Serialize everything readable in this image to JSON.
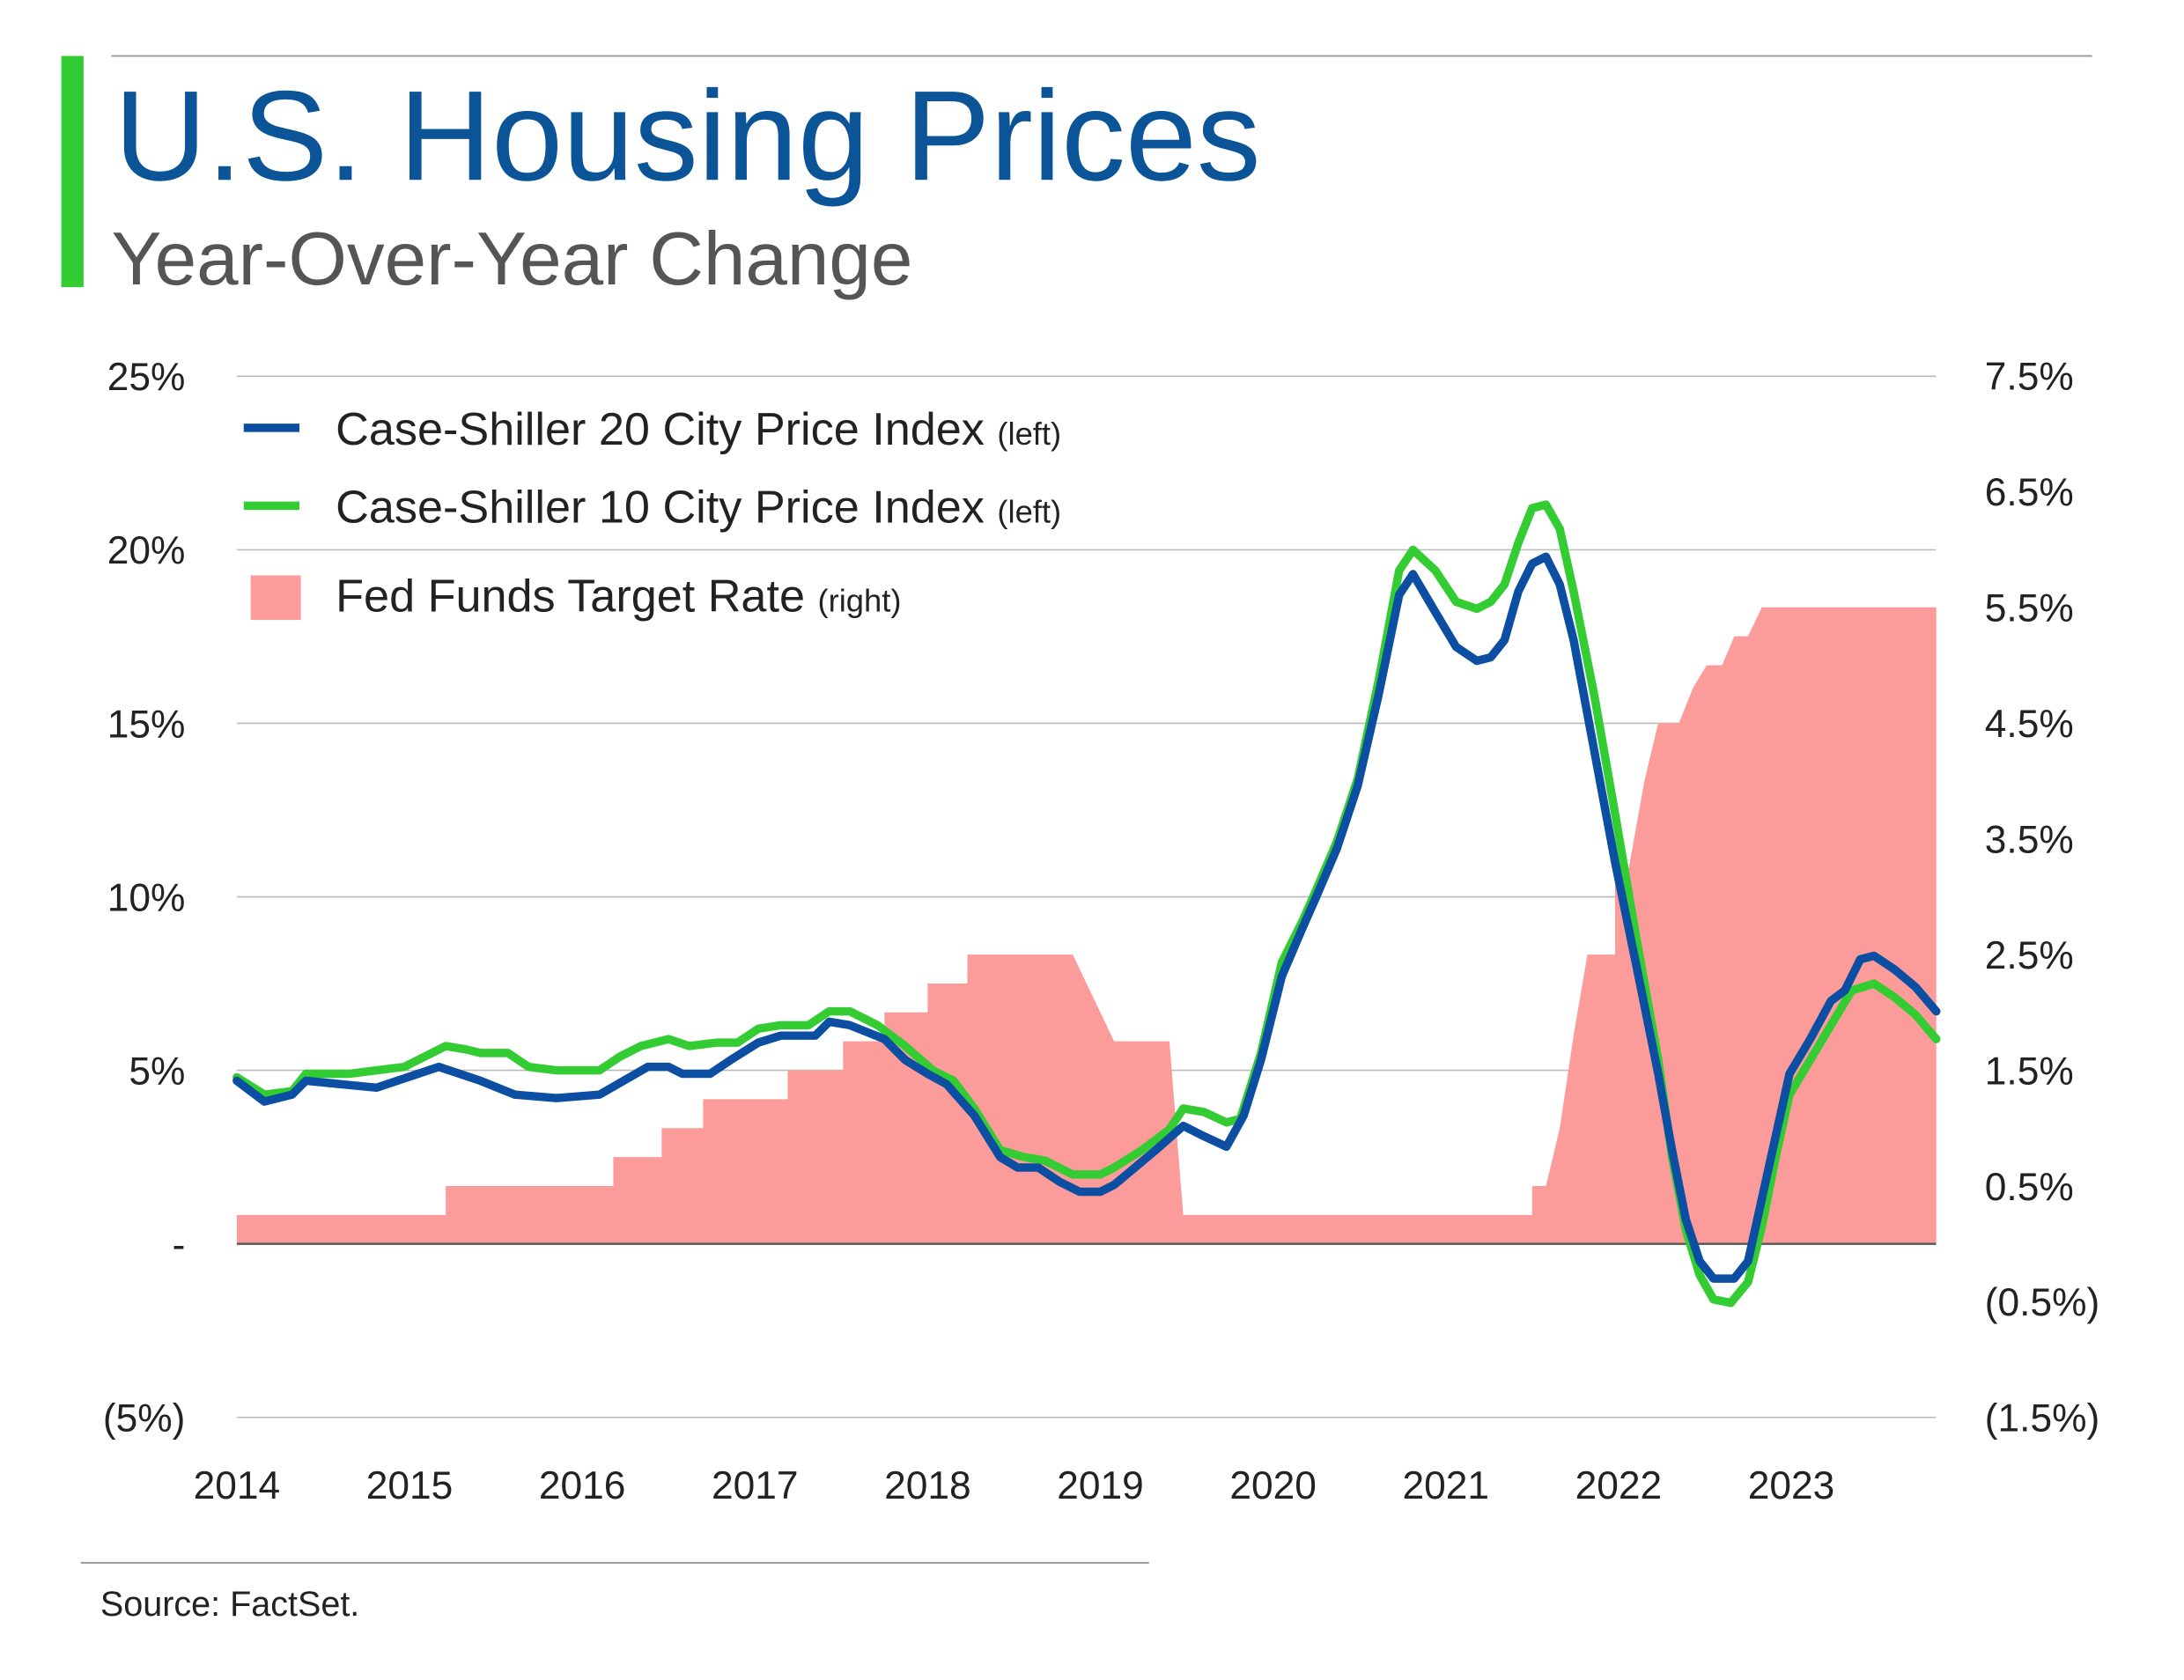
{
  "header": {
    "title": "U.S. Housing Prices",
    "subtitle": "Year-Over-Year Change"
  },
  "footer": {
    "source": "Source: FactSet."
  },
  "colors": {
    "cs20": "#0b4ea2",
    "cs10": "#33cc33",
    "fed": "#fc9c9a",
    "title": "#0a5497",
    "accent_bar": "#33cc33"
  },
  "chart_data": {
    "type": "line",
    "title": "U.S. Housing Prices",
    "subtitle": "Year-Over-Year Change",
    "xlim": [
      2014,
      2023.84
    ],
    "ylim_left": [
      -5,
      25
    ],
    "ylim_right": [
      -1.5,
      7.5
    ],
    "grid": true,
    "legend_placement": "top-left",
    "x_ticks": [
      "2014",
      "2015",
      "2016",
      "2017",
      "2018",
      "2019",
      "2020",
      "2021",
      "2022",
      "2023"
    ],
    "left_ticks": [
      {
        "v": 25,
        "label": "25%"
      },
      {
        "v": 20,
        "label": "20%"
      },
      {
        "v": 15,
        "label": "15%"
      },
      {
        "v": 10,
        "label": "10%"
      },
      {
        "v": 5,
        "label": "5%"
      },
      {
        "v": 0,
        "label": "-"
      },
      {
        "v": -5,
        "label": "(5%)"
      }
    ],
    "right_ticks": [
      {
        "v": 7.5,
        "label": "7.5%"
      },
      {
        "v": 6.5,
        "label": "6.5%"
      },
      {
        "v": 5.5,
        "label": "5.5%"
      },
      {
        "v": 4.5,
        "label": "4.5%"
      },
      {
        "v": 3.5,
        "label": "3.5%"
      },
      {
        "v": 2.5,
        "label": "2.5%"
      },
      {
        "v": 1.5,
        "label": "1.5%"
      },
      {
        "v": 0.5,
        "label": "0.5%"
      },
      {
        "v": -0.5,
        "label": "(0.5%)"
      },
      {
        "v": -1.5,
        "label": "(1.5%)"
      }
    ],
    "series": [
      {
        "name": "Case-Shiller 20 City Price Index",
        "axis_note": "(left)",
        "axis": "left",
        "type": "line",
        "points": [
          [
            2014.0,
            4.7
          ],
          [
            2014.16,
            4.1
          ],
          [
            2014.32,
            4.3
          ],
          [
            2014.4,
            4.7
          ],
          [
            2014.81,
            4.5
          ],
          [
            2015.05,
            4.9
          ],
          [
            2015.17,
            5.1
          ],
          [
            2015.41,
            4.7
          ],
          [
            2015.61,
            4.3
          ],
          [
            2015.85,
            4.2
          ],
          [
            2016.1,
            4.3
          ],
          [
            2016.38,
            5.1
          ],
          [
            2016.5,
            5.1
          ],
          [
            2016.58,
            4.9
          ],
          [
            2016.74,
            4.9
          ],
          [
            2016.86,
            5.3
          ],
          [
            2017.02,
            5.8
          ],
          [
            2017.15,
            6.0
          ],
          [
            2017.35,
            6.0
          ],
          [
            2017.43,
            6.4
          ],
          [
            2017.55,
            6.3
          ],
          [
            2017.75,
            5.9
          ],
          [
            2017.87,
            5.3
          ],
          [
            2018.0,
            4.9
          ],
          [
            2018.11,
            4.6
          ],
          [
            2018.27,
            3.7
          ],
          [
            2018.42,
            2.5
          ],
          [
            2018.52,
            2.2
          ],
          [
            2018.64,
            2.2
          ],
          [
            2018.76,
            1.8
          ],
          [
            2018.88,
            1.5
          ],
          [
            2019.0,
            1.5
          ],
          [
            2019.08,
            1.7
          ],
          [
            2019.2,
            2.2
          ],
          [
            2019.32,
            2.7
          ],
          [
            2019.48,
            3.4
          ],
          [
            2019.6,
            3.1
          ],
          [
            2019.73,
            2.8
          ],
          [
            2019.83,
            3.7
          ],
          [
            2019.93,
            5.3
          ],
          [
            2020.05,
            7.7
          ],
          [
            2020.17,
            9.1
          ],
          [
            2020.25,
            10.0
          ],
          [
            2020.37,
            11.4
          ],
          [
            2020.49,
            13.2
          ],
          [
            2020.61,
            15.8
          ],
          [
            2020.73,
            18.7
          ],
          [
            2020.81,
            19.3
          ],
          [
            2020.94,
            18.2
          ],
          [
            2021.06,
            17.2
          ],
          [
            2021.18,
            16.8
          ],
          [
            2021.26,
            16.9
          ],
          [
            2021.34,
            17.4
          ],
          [
            2021.42,
            18.8
          ],
          [
            2021.5,
            19.6
          ],
          [
            2021.58,
            19.8
          ],
          [
            2021.66,
            19.0
          ],
          [
            2021.74,
            17.4
          ],
          [
            2021.86,
            14.2
          ],
          [
            2021.98,
            11.0
          ],
          [
            2022.1,
            8.1
          ],
          [
            2022.23,
            4.9
          ],
          [
            2022.31,
            2.7
          ],
          [
            2022.39,
            0.7
          ],
          [
            2022.47,
            -0.5
          ],
          [
            2022.55,
            -1.0
          ],
          [
            2022.67,
            -1.0
          ],
          [
            2022.75,
            -0.5
          ],
          [
            2022.83,
            1.3
          ],
          [
            2022.91,
            3.1
          ],
          [
            2022.99,
            4.9
          ],
          [
            2023.11,
            5.9
          ],
          [
            2023.23,
            7.0
          ],
          [
            2023.31,
            7.3
          ],
          [
            2023.4,
            8.2
          ],
          [
            2023.48,
            8.3
          ],
          [
            2023.6,
            7.9
          ],
          [
            2023.72,
            7.4
          ],
          [
            2023.84,
            6.7
          ]
        ]
      },
      {
        "name": "Case-Shiller 10 City Price Index",
        "axis_note": "(left)",
        "axis": "left",
        "type": "line",
        "points": [
          [
            2014.0,
            4.8
          ],
          [
            2014.16,
            4.3
          ],
          [
            2014.32,
            4.4
          ],
          [
            2014.4,
            4.9
          ],
          [
            2014.65,
            4.9
          ],
          [
            2014.81,
            5.0
          ],
          [
            2014.97,
            5.1
          ],
          [
            2015.13,
            5.5
          ],
          [
            2015.21,
            5.7
          ],
          [
            2015.33,
            5.6
          ],
          [
            2015.41,
            5.5
          ],
          [
            2015.57,
            5.5
          ],
          [
            2015.69,
            5.1
          ],
          [
            2015.85,
            5.0
          ],
          [
            2016.1,
            5.0
          ],
          [
            2016.22,
            5.4
          ],
          [
            2016.34,
            5.7
          ],
          [
            2016.5,
            5.9
          ],
          [
            2016.62,
            5.7
          ],
          [
            2016.78,
            5.8
          ],
          [
            2016.9,
            5.8
          ],
          [
            2017.02,
            6.2
          ],
          [
            2017.15,
            6.3
          ],
          [
            2017.31,
            6.3
          ],
          [
            2017.43,
            6.7
          ],
          [
            2017.55,
            6.7
          ],
          [
            2017.71,
            6.3
          ],
          [
            2017.87,
            5.7
          ],
          [
            2018.03,
            5.0
          ],
          [
            2018.15,
            4.7
          ],
          [
            2018.27,
            3.9
          ],
          [
            2018.42,
            2.7
          ],
          [
            2018.56,
            2.5
          ],
          [
            2018.68,
            2.4
          ],
          [
            2018.84,
            2.0
          ],
          [
            2019.0,
            2.0
          ],
          [
            2019.08,
            2.2
          ],
          [
            2019.24,
            2.7
          ],
          [
            2019.4,
            3.3
          ],
          [
            2019.48,
            3.9
          ],
          [
            2019.6,
            3.8
          ],
          [
            2019.73,
            3.5
          ],
          [
            2019.81,
            3.6
          ],
          [
            2019.93,
            5.5
          ],
          [
            2020.05,
            8.1
          ],
          [
            2020.17,
            9.3
          ],
          [
            2020.25,
            10.2
          ],
          [
            2020.37,
            11.6
          ],
          [
            2020.49,
            13.4
          ],
          [
            2020.61,
            16.2
          ],
          [
            2020.73,
            19.4
          ],
          [
            2020.81,
            20.0
          ],
          [
            2020.94,
            19.4
          ],
          [
            2021.06,
            18.5
          ],
          [
            2021.18,
            18.3
          ],
          [
            2021.26,
            18.5
          ],
          [
            2021.34,
            19.0
          ],
          [
            2021.42,
            20.2
          ],
          [
            2021.5,
            21.2
          ],
          [
            2021.58,
            21.3
          ],
          [
            2021.66,
            20.6
          ],
          [
            2021.74,
            18.8
          ],
          [
            2021.86,
            15.8
          ],
          [
            2021.98,
            12.4
          ],
          [
            2022.1,
            8.9
          ],
          [
            2022.23,
            5.3
          ],
          [
            2022.31,
            2.5
          ],
          [
            2022.39,
            0.4
          ],
          [
            2022.47,
            -0.9
          ],
          [
            2022.55,
            -1.6
          ],
          [
            2022.65,
            -1.7
          ],
          [
            2022.75,
            -1.1
          ],
          [
            2022.83,
            0.5
          ],
          [
            2022.91,
            2.5
          ],
          [
            2022.99,
            4.3
          ],
          [
            2023.11,
            5.3
          ],
          [
            2023.23,
            6.3
          ],
          [
            2023.35,
            7.3
          ],
          [
            2023.48,
            7.5
          ],
          [
            2023.6,
            7.1
          ],
          [
            2023.72,
            6.6
          ],
          [
            2023.84,
            5.9
          ]
        ]
      },
      {
        "name": "Fed Funds Target Rate",
        "axis_note": "(right)",
        "axis": "right",
        "type": "area",
        "points": [
          [
            2014,
            0.25
          ],
          [
            2015.21,
            0.25
          ],
          [
            2015.21,
            0.5
          ],
          [
            2016.18,
            0.5
          ],
          [
            2016.18,
            0.75
          ],
          [
            2016.46,
            0.75
          ],
          [
            2016.46,
            1.0
          ],
          [
            2016.7,
            1.0
          ],
          [
            2016.7,
            1.25
          ],
          [
            2017.19,
            1.25
          ],
          [
            2017.19,
            1.5
          ],
          [
            2017.51,
            1.5
          ],
          [
            2017.51,
            1.75
          ],
          [
            2017.75,
            1.75
          ],
          [
            2017.75,
            2.0
          ],
          [
            2018.0,
            2.0
          ],
          [
            2018.0,
            2.25
          ],
          [
            2018.23,
            2.25
          ],
          [
            2018.23,
            2.5
          ],
          [
            2018.84,
            2.5
          ],
          [
            2019.08,
            1.75
          ],
          [
            2019.4,
            1.75
          ],
          [
            2019.48,
            0.25
          ],
          [
            2021.5,
            0.25
          ],
          [
            2021.5,
            0.5
          ],
          [
            2021.58,
            0.5
          ],
          [
            2021.66,
            1.0
          ],
          [
            2021.74,
            1.8
          ],
          [
            2021.82,
            2.5
          ],
          [
            2021.98,
            2.5
          ],
          [
            2021.98,
            3.25
          ],
          [
            2022.06,
            3.25
          ],
          [
            2022.15,
            4.0
          ],
          [
            2022.23,
            4.5
          ],
          [
            2022.35,
            4.5
          ],
          [
            2022.43,
            4.8
          ],
          [
            2022.51,
            5.0
          ],
          [
            2022.6,
            5.0
          ],
          [
            2022.67,
            5.25
          ],
          [
            2022.75,
            5.25
          ],
          [
            2022.83,
            5.5
          ],
          [
            2023.84,
            5.5
          ]
        ]
      }
    ]
  }
}
